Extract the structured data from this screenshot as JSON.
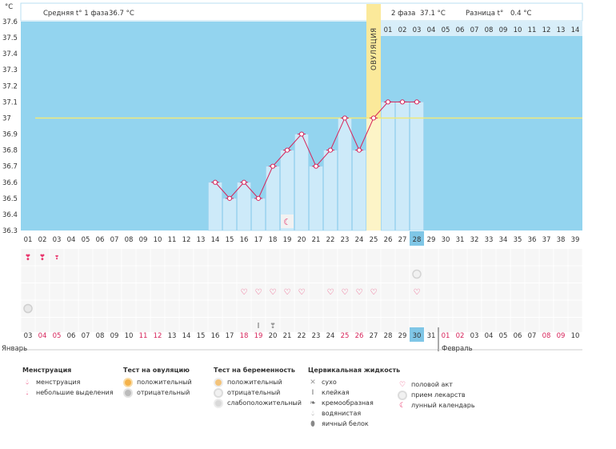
{
  "header": {
    "phase1_text": "Средняя t° 1 фаза",
    "phase1_value": "36.7 °C",
    "phase2_text": "2 фаза",
    "phase2_value": "37.1 °C",
    "diff_text": "Разница t°",
    "diff_value": "0.4 °C",
    "unit": "°C"
  },
  "chart_data": {
    "type": "line",
    "title": "",
    "ylabel": "°C",
    "ylim": [
      36.3,
      37.6
    ],
    "yticks": [
      "37.6",
      "37.5",
      "37.4",
      "37.3",
      "37.2",
      "37.1",
      "37",
      "36.9",
      "36.8",
      "36.7",
      "36.6",
      "36.5",
      "36.4",
      "36.3"
    ],
    "cycle_days": [
      "01",
      "02",
      "03",
      "04",
      "05",
      "06",
      "07",
      "08",
      "09",
      "10",
      "11",
      "12",
      "13",
      "14",
      "15",
      "16",
      "17",
      "18",
      "19",
      "20",
      "21",
      "22",
      "23",
      "24",
      "25",
      "26",
      "27",
      "28",
      "29",
      "30",
      "31",
      "32",
      "33",
      "34",
      "35",
      "36",
      "37",
      "38",
      "39"
    ],
    "phase2_top_days": [
      "01",
      "02",
      "03",
      "04",
      "05",
      "06",
      "07",
      "08",
      "09",
      "10",
      "11",
      "12",
      "13",
      "14"
    ],
    "x_days": [
      14,
      15,
      16,
      17,
      18,
      19,
      20,
      21,
      22,
      23,
      24,
      25,
      26,
      27,
      28
    ],
    "temperatures": [
      36.6,
      36.5,
      36.6,
      36.5,
      36.7,
      36.8,
      36.9,
      36.7,
      36.8,
      37.0,
      36.8,
      37.0,
      37.1,
      37.1,
      37.1
    ],
    "coverline": 37.0,
    "ovulation_day": 25,
    "ovulation_label": "ОВУЛЯЦИЯ",
    "current_day": 28,
    "calendar_dates": [
      "03",
      "04",
      "05",
      "06",
      "07",
      "08",
      "09",
      "10",
      "11",
      "12",
      "13",
      "14",
      "15",
      "16",
      "17",
      "18",
      "19",
      "20",
      "21",
      "22",
      "23",
      "24",
      "25",
      "26",
      "27",
      "28",
      "29",
      "30",
      "31",
      "01",
      "02",
      "03",
      "04",
      "05",
      "06",
      "07",
      "08",
      "09",
      "10"
    ],
    "calendar_red_indices": [
      1,
      2,
      8,
      9,
      15,
      16,
      22,
      23,
      29,
      30,
      36,
      37
    ],
    "current_date_index": 27,
    "month_start": "Январь",
    "month_next": "Февраль",
    "month_divider_index": 29,
    "marks": {
      "menstruation": [
        1,
        2
      ],
      "light_spotting": [
        3
      ],
      "intercourse": [
        16,
        17,
        18,
        19,
        20,
        22,
        23,
        24,
        25,
        28
      ],
      "medication": [
        28
      ],
      "moon": [
        19
      ],
      "ovulation_negative": [
        1
      ],
      "cervical_sticky": [
        17
      ],
      "cervical_watery": [
        18
      ]
    }
  },
  "legend": {
    "menstruation": {
      "title": "Менструация",
      "items": [
        "менструация",
        "небольшие выделения"
      ]
    },
    "ovulation_test": {
      "title": "Тест на овуляцию",
      "items": [
        "положительный",
        "отрицательный"
      ]
    },
    "pregnancy_test": {
      "title": "Тест на беременность",
      "items": [
        "положительный",
        "отрицательный",
        "слабоположительный"
      ]
    },
    "cervical": {
      "title": "Цервикальная жидкость",
      "items": [
        "сухо",
        "клейкая",
        "кремообразная",
        "водянистая",
        "яичный белок"
      ]
    },
    "other": {
      "items": [
        "половой акт",
        "прием лекарств",
        "лунный календарь"
      ]
    }
  },
  "colors": {
    "sky": "#93d4ef",
    "bar": "#cdeaf9",
    "ovulation": "#fbe99a",
    "line": "#d6245a",
    "coverline": "#f0e87a",
    "current": "#7fc6e6",
    "red_text": "#d6245a"
  }
}
